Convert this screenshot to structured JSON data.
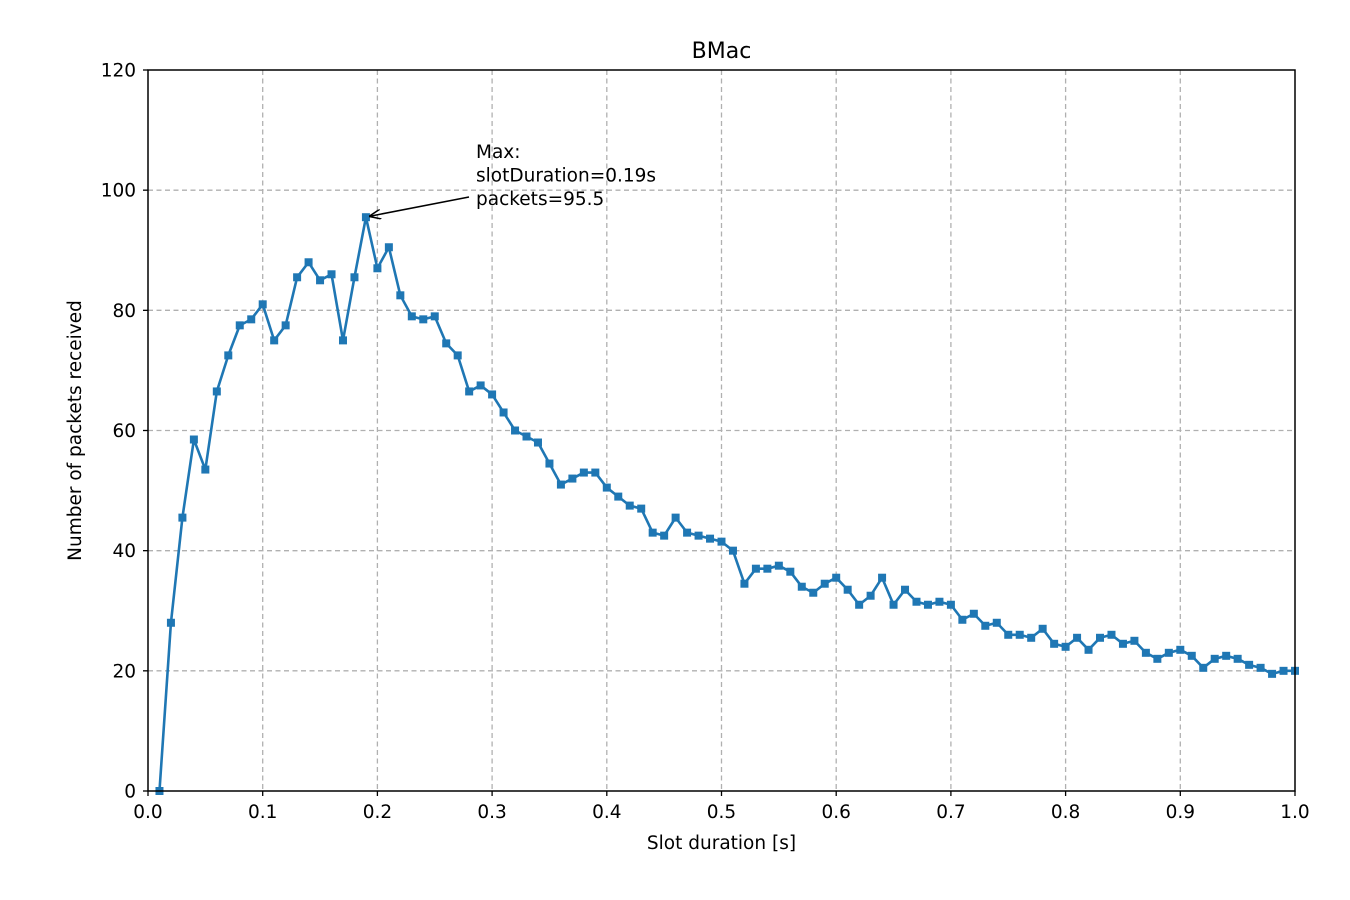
{
  "chart_data": {
    "type": "line",
    "title": "BMac",
    "xlabel": "Slot duration [s]",
    "ylabel": "Number of packets received",
    "xlim": [
      0.0,
      1.0
    ],
    "ylim": [
      0,
      120
    ],
    "xticks": [
      "0.0",
      "0.1",
      "0.2",
      "0.3",
      "0.4",
      "0.5",
      "0.6",
      "0.7",
      "0.8",
      "0.9",
      "1.0"
    ],
    "yticks": [
      "0",
      "20",
      "40",
      "60",
      "80",
      "100",
      "120"
    ],
    "grid": true,
    "marker": "square",
    "color": "#1f77b4",
    "series": [
      {
        "x": [
          0.01,
          0.02,
          0.03,
          0.04,
          0.05,
          0.06,
          0.07,
          0.08,
          0.09,
          0.1,
          0.11,
          0.12,
          0.13,
          0.14,
          0.15,
          0.16,
          0.17,
          0.18,
          0.19,
          0.2,
          0.21,
          0.22,
          0.23,
          0.24,
          0.25,
          0.26,
          0.27,
          0.28,
          0.29,
          0.3,
          0.31,
          0.32,
          0.33,
          0.34,
          0.35,
          0.36,
          0.37,
          0.38,
          0.39,
          0.4,
          0.41,
          0.42,
          0.43,
          0.44,
          0.45,
          0.46,
          0.47,
          0.48,
          0.49,
          0.5,
          0.51,
          0.52,
          0.53,
          0.54,
          0.55,
          0.56,
          0.57,
          0.58,
          0.59,
          0.6,
          0.61,
          0.62,
          0.63,
          0.64,
          0.65,
          0.66,
          0.67,
          0.68,
          0.69,
          0.7,
          0.71,
          0.72,
          0.73,
          0.74,
          0.75,
          0.76,
          0.77,
          0.78,
          0.79,
          0.8,
          0.81,
          0.82,
          0.83,
          0.84,
          0.85,
          0.86,
          0.87,
          0.88,
          0.89,
          0.9,
          0.91,
          0.92,
          0.93,
          0.94,
          0.95,
          0.96,
          0.97,
          0.98,
          0.99,
          1.0
        ],
        "y": [
          0,
          28,
          45.5,
          58.5,
          53.5,
          66.5,
          72.5,
          77.5,
          78.5,
          81,
          75,
          77.5,
          85.5,
          88,
          85,
          86,
          75,
          85.5,
          95.5,
          87,
          90.5,
          82.5,
          79,
          78.5,
          79,
          74.5,
          72.5,
          66.5,
          67.5,
          66,
          63,
          60,
          59,
          58,
          54.5,
          51,
          52,
          53,
          53,
          50.5,
          49,
          47.5,
          47,
          43,
          42.5,
          45.5,
          43,
          42.5,
          42,
          41.5,
          40,
          34.5,
          37,
          37,
          37.5,
          36.5,
          34,
          33,
          34.5,
          35.5,
          33.5,
          31,
          32.5,
          35.5,
          31,
          33.5,
          31.5,
          31,
          31.5,
          31,
          28.5,
          29.5,
          27.5,
          28,
          26,
          26,
          25.5,
          27,
          24.5,
          24,
          25.5,
          23.5,
          25.5,
          26,
          24.5,
          25,
          23,
          22,
          23,
          23.5,
          22.5,
          20.5,
          22,
          22.5,
          22,
          21,
          20.5,
          19.5,
          20,
          20
        ]
      }
    ],
    "annotation": {
      "lines": [
        "Max:",
        "slotDuration=0.19s",
        "packets=95.5"
      ],
      "target": [
        0.19,
        95.5
      ]
    }
  }
}
